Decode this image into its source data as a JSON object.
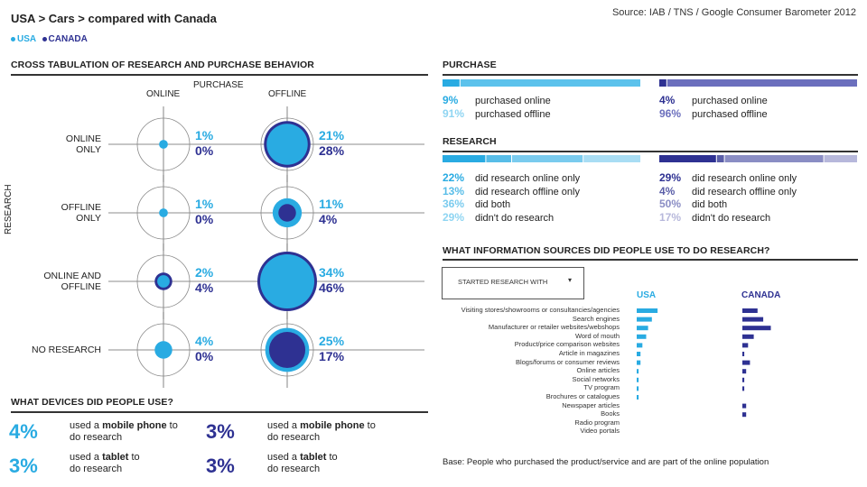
{
  "header": {
    "breadcrumb": "USA > Cars > compared with Canada",
    "source": "Source: IAB / TNS / Google Consumer Barometer 2012",
    "legend_usa": "USA",
    "legend_canada": "CANADA",
    "color_usa": "#29abe2",
    "color_canada": "#2e3192"
  },
  "cross": {
    "title": "CROSS TABULATION OF RESEARCH AND PURCHASE BEHAVIOR",
    "col_purchase": "PURCHASE",
    "col_online": "ONLINE",
    "col_offline": "OFFLINE",
    "axis_research": "RESEARCH",
    "rows": [
      {
        "label": "ONLINE\nONLY",
        "online_usa": "1%",
        "online_can": "0%",
        "offline_usa": "21%",
        "offline_can": "28%"
      },
      {
        "label": "OFFLINE\nONLY",
        "online_usa": "1%",
        "online_can": "0%",
        "offline_usa": "11%",
        "offline_can": "4%"
      },
      {
        "label": "ONLINE AND\nOFFLINE",
        "online_usa": "2%",
        "online_can": "4%",
        "offline_usa": "34%",
        "offline_can": "46%"
      },
      {
        "label": "NO RESEARCH",
        "online_usa": "4%",
        "online_can": "0%",
        "offline_usa": "25%",
        "offline_can": "17%"
      }
    ]
  },
  "devices": {
    "title": "WHAT DEVICES DID PEOPLE USE?",
    "usa_mobile_pct": "4%",
    "usa_tablet_pct": "3%",
    "can_mobile_pct": "3%",
    "can_tablet_pct": "3%",
    "mobile_pre": "used a ",
    "mobile_bold": "mobile phone",
    "mobile_post": " to",
    "tablet_pre": "used a ",
    "tablet_bold": "tablet",
    "tablet_post": " to",
    "line2": "do research"
  },
  "purchase": {
    "title": "PURCHASE",
    "usa": [
      {
        "pct": "9%",
        "text": "purchased online"
      },
      {
        "pct": "91%",
        "text": "purchased offline"
      }
    ],
    "can": [
      {
        "pct": "4%",
        "text": "purchased online"
      },
      {
        "pct": "96%",
        "text": "purchased offline"
      }
    ]
  },
  "research": {
    "title": "RESEARCH",
    "usa": [
      {
        "pct": "22%",
        "text": "did research online only"
      },
      {
        "pct": "13%",
        "text": "did research offline only"
      },
      {
        "pct": "36%",
        "text": "did both"
      },
      {
        "pct": "29%",
        "text": "didn't do research"
      }
    ],
    "can": [
      {
        "pct": "29%",
        "text": "did research online only"
      },
      {
        "pct": "4%",
        "text": "did research offline only"
      },
      {
        "pct": "50%",
        "text": "did both"
      },
      {
        "pct": "17%",
        "text": "didn't do research"
      }
    ]
  },
  "sources": {
    "title": "WHAT INFORMATION SOURCES DID PEOPLE USE TO DO RESEARCH?",
    "dropdown_value": "STARTED RESEARCH WITH",
    "col_usa": "USA",
    "col_canada": "CANADA",
    "base": "Base: People who purchased the product/service and are part of the online population"
  },
  "chart_data": {
    "type": "bar",
    "title": "WHAT INFORMATION SOURCES DID PEOPLE USE TO DO RESEARCH?",
    "categories": [
      "Visiting stores/showrooms or consultancies/agencies",
      "Search engines",
      "Manufacturer or retailer websites/webshops",
      "Word of mouth",
      "Product/price comparison websites",
      "Article in magazines",
      "Blogs/forums or consumer reviews",
      "Online articles",
      "Social networks",
      "TV program",
      "Brochures or catalogues",
      "Newspaper articles",
      "Books",
      "Radio program",
      "Video portals"
    ],
    "series": [
      {
        "name": "USA",
        "values": [
          11,
          8,
          6,
          5,
          3,
          2,
          2,
          1,
          1,
          1,
          1,
          0,
          0,
          0,
          0
        ]
      },
      {
        "name": "CANADA",
        "values": [
          8,
          11,
          15,
          6,
          3,
          1,
          4,
          2,
          1,
          1,
          0,
          2,
          2,
          0,
          0
        ]
      }
    ],
    "xlabel": "",
    "ylabel": ""
  }
}
